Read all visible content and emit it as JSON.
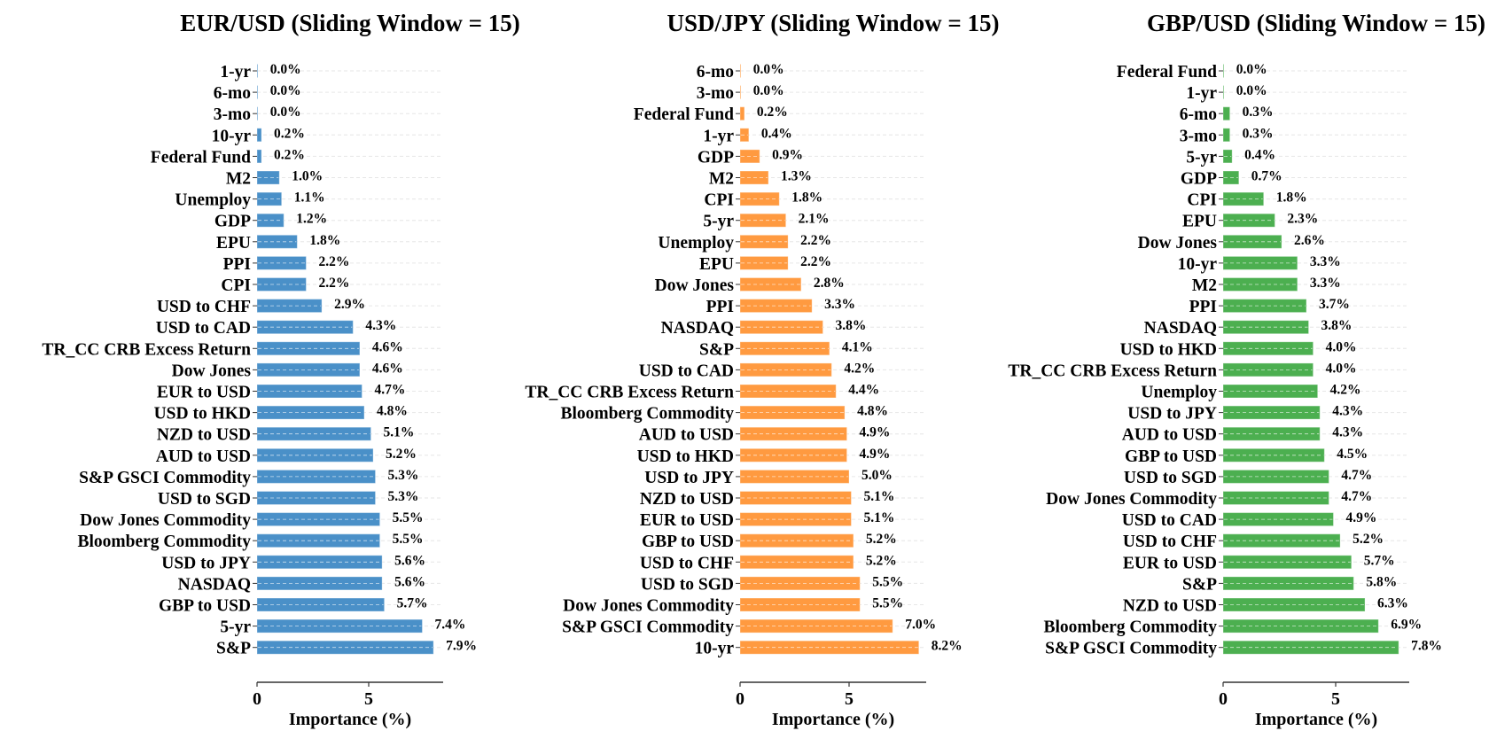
{
  "chart_data": [
    {
      "type": "bar",
      "orientation": "horizontal",
      "title": "EUR/USD (Sliding Window = 15)",
      "xlabel": "Importance (%)",
      "ylabel": "",
      "xlim": [
        0,
        8.3
      ],
      "xticks": [
        0,
        5
      ],
      "grid": "horizontal dashed",
      "color": "#4a90c8",
      "categories": [
        "1-yr",
        "6-mo",
        "3-mo",
        "10-yr",
        "Federal Fund",
        "M2",
        "Unemploy",
        "GDP",
        "EPU",
        "PPI",
        "CPI",
        "USD to CHF",
        "USD to CAD",
        "TR_CC CRB Excess Return",
        "Dow Jones",
        "EUR to USD",
        "USD to HKD",
        "NZD to USD",
        "AUD to USD",
        "S&P GSCI Commodity",
        "USD to SGD",
        "Dow Jones Commodity",
        "Bloomberg Commodity",
        "USD to JPY",
        "NASDAQ",
        "GBP to USD",
        "5-yr",
        "S&P"
      ],
      "values": [
        0.0,
        0.0,
        0.0,
        0.2,
        0.2,
        1.0,
        1.1,
        1.2,
        1.8,
        2.2,
        2.2,
        2.9,
        4.3,
        4.6,
        4.6,
        4.7,
        4.8,
        5.1,
        5.2,
        5.3,
        5.3,
        5.5,
        5.5,
        5.6,
        5.6,
        5.7,
        7.4,
        7.9
      ],
      "value_labels": [
        "0.0%",
        "0.0%",
        "0.0%",
        "0.2%",
        "0.2%",
        "1.0%",
        "1.1%",
        "1.2%",
        "1.8%",
        "2.2%",
        "2.2%",
        "2.9%",
        "4.3%",
        "4.6%",
        "4.6%",
        "4.7%",
        "4.8%",
        "5.1%",
        "5.2%",
        "5.3%",
        "5.3%",
        "5.5%",
        "5.5%",
        "5.6%",
        "5.6%",
        "5.7%",
        "7.4%",
        "7.9%"
      ]
    },
    {
      "type": "bar",
      "orientation": "horizontal",
      "title": "USD/JPY (Sliding Window = 15)",
      "xlabel": "Importance (%)",
      "ylabel": "",
      "xlim": [
        0,
        8.6
      ],
      "xticks": [
        0,
        5
      ],
      "grid": "horizontal dashed",
      "color": "#ff9a40",
      "categories": [
        "6-mo",
        "3-mo",
        "Federal Fund",
        "1-yr",
        "GDP",
        "M2",
        "CPI",
        "5-yr",
        "Unemploy",
        "EPU",
        "Dow Jones",
        "PPI",
        "NASDAQ",
        "S&P",
        "USD to CAD",
        "TR_CC CRB Excess Return",
        "Bloomberg Commodity",
        "AUD to USD",
        "USD to HKD",
        "USD to JPY",
        "NZD to USD",
        "EUR to USD",
        "GBP to USD",
        "USD to CHF",
        "USD to SGD",
        "Dow Jones Commodity",
        "S&P GSCI Commodity",
        "10-yr"
      ],
      "values": [
        0.0,
        0.0,
        0.2,
        0.4,
        0.9,
        1.3,
        1.8,
        2.1,
        2.2,
        2.2,
        2.8,
        3.3,
        3.8,
        4.1,
        4.2,
        4.4,
        4.8,
        4.9,
        4.9,
        5.0,
        5.1,
        5.1,
        5.2,
        5.2,
        5.5,
        5.5,
        7.0,
        8.2
      ],
      "value_labels": [
        "0.0%",
        "0.0%",
        "0.2%",
        "0.4%",
        "0.9%",
        "1.3%",
        "1.8%",
        "2.1%",
        "2.2%",
        "2.2%",
        "2.8%",
        "3.3%",
        "3.8%",
        "4.1%",
        "4.2%",
        "4.4%",
        "4.8%",
        "4.9%",
        "4.9%",
        "5.0%",
        "5.1%",
        "5.1%",
        "5.2%",
        "5.2%",
        "5.5%",
        "5.5%",
        "7.0%",
        "8.2%"
      ]
    },
    {
      "type": "bar",
      "orientation": "horizontal",
      "title": "GBP/USD (Sliding Window = 15)",
      "xlabel": "Importance (%)",
      "ylabel": "",
      "xlim": [
        0,
        8.2
      ],
      "xticks": [
        0,
        5
      ],
      "grid": "horizontal dashed",
      "color": "#4caf50",
      "categories": [
        "Federal Fund",
        "1-yr",
        "6-mo",
        "3-mo",
        "5-yr",
        "GDP",
        "CPI",
        "EPU",
        "Dow Jones",
        "10-yr",
        "M2",
        "PPI",
        "NASDAQ",
        "USD to HKD",
        "TR_CC CRB Excess Return",
        "Unemploy",
        "USD to JPY",
        "AUD to USD",
        "GBP to USD",
        "USD to SGD",
        "Dow Jones Commodity",
        "USD to CAD",
        "USD to CHF",
        "EUR to USD",
        "S&P",
        "NZD to USD",
        "Bloomberg Commodity",
        "S&P GSCI Commodity"
      ],
      "values": [
        0.0,
        0.0,
        0.3,
        0.3,
        0.4,
        0.7,
        1.8,
        2.3,
        2.6,
        3.3,
        3.3,
        3.7,
        3.8,
        4.0,
        4.0,
        4.2,
        4.3,
        4.3,
        4.5,
        4.7,
        4.7,
        4.9,
        5.2,
        5.7,
        5.8,
        6.3,
        6.9,
        7.8
      ],
      "value_labels": [
        "0.0%",
        "0.0%",
        "0.3%",
        "0.3%",
        "0.4%",
        "0.7%",
        "1.8%",
        "2.3%",
        "2.6%",
        "3.3%",
        "3.3%",
        "3.7%",
        "3.8%",
        "4.0%",
        "4.0%",
        "4.2%",
        "4.3%",
        "4.3%",
        "4.5%",
        "4.7%",
        "4.7%",
        "4.9%",
        "5.2%",
        "5.7%",
        "5.8%",
        "6.3%",
        "6.9%",
        "7.8%"
      ]
    }
  ]
}
